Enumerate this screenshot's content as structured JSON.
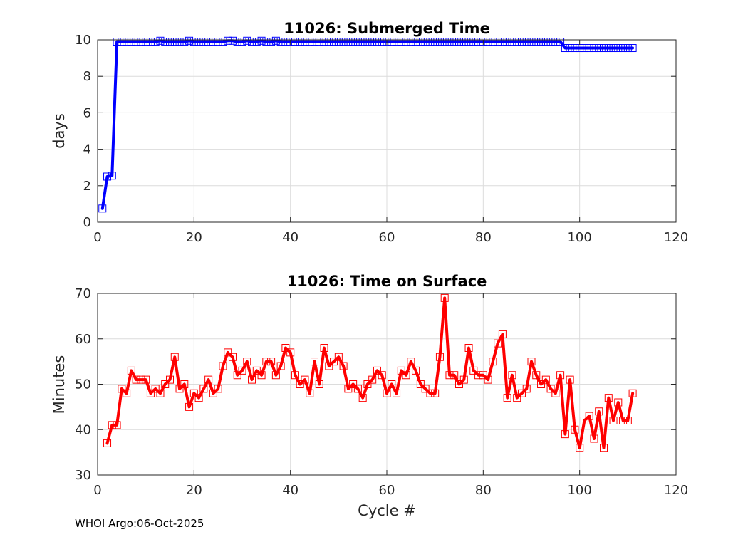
{
  "footer_text": "WHOI Argo:06-Oct-2025",
  "chart_data": [
    {
      "type": "line",
      "title": "11026: Submerged Time",
      "xlabel": "",
      "ylabel": "days",
      "xlim": [
        0,
        120
      ],
      "ylim": [
        0,
        10
      ],
      "xticks": [
        0,
        20,
        40,
        60,
        80,
        100,
        120
      ],
      "yticks": [
        0,
        2,
        4,
        6,
        8,
        10
      ],
      "grid": true,
      "color": "#0000ff",
      "marker": "square",
      "x": [
        1,
        2,
        3,
        4,
        5,
        6,
        7,
        8,
        9,
        10,
        11,
        12,
        13,
        14,
        15,
        16,
        17,
        18,
        19,
        20,
        21,
        22,
        23,
        24,
        25,
        26,
        27,
        28,
        29,
        30,
        31,
        32,
        33,
        34,
        35,
        36,
        37,
        38,
        39,
        40,
        41,
        42,
        43,
        44,
        45,
        46,
        47,
        48,
        49,
        50,
        51,
        52,
        53,
        54,
        55,
        56,
        57,
        58,
        59,
        60,
        61,
        62,
        63,
        64,
        65,
        66,
        67,
        68,
        69,
        70,
        71,
        72,
        73,
        74,
        75,
        76,
        77,
        78,
        79,
        80,
        81,
        82,
        83,
        84,
        85,
        86,
        87,
        88,
        89,
        90,
        91,
        92,
        93,
        94,
        95,
        96,
        97,
        98,
        99,
        100,
        101,
        102,
        103,
        104,
        105,
        106,
        107,
        108,
        109,
        110,
        111
      ],
      "values": [
        0.75,
        2.5,
        2.55,
        9.9,
        9.9,
        9.9,
        9.9,
        9.9,
        9.9,
        9.9,
        9.9,
        9.9,
        9.95,
        9.9,
        9.9,
        9.9,
        9.9,
        9.9,
        9.95,
        9.9,
        9.9,
        9.9,
        9.9,
        9.9,
        9.9,
        9.9,
        9.95,
        9.95,
        9.9,
        9.9,
        9.95,
        9.9,
        9.9,
        9.95,
        9.9,
        9.9,
        9.95,
        9.9,
        9.9,
        9.9,
        9.9,
        9.9,
        9.9,
        9.9,
        9.9,
        9.9,
        9.9,
        9.9,
        9.9,
        9.9,
        9.9,
        9.9,
        9.9,
        9.9,
        9.9,
        9.9,
        9.9,
        9.9,
        9.9,
        9.9,
        9.9,
        9.9,
        9.9,
        9.9,
        9.9,
        9.9,
        9.9,
        9.9,
        9.9,
        9.9,
        9.9,
        9.9,
        9.9,
        9.9,
        9.9,
        9.9,
        9.9,
        9.9,
        9.9,
        9.9,
        9.9,
        9.9,
        9.9,
        9.9,
        9.9,
        9.9,
        9.9,
        9.9,
        9.9,
        9.9,
        9.9,
        9.9,
        9.9,
        9.9,
        9.9,
        9.9,
        9.55,
        9.55,
        9.55,
        9.55,
        9.55,
        9.55,
        9.55,
        9.55,
        9.55,
        9.55,
        9.55,
        9.55,
        9.55,
        9.55,
        9.55
      ]
    },
    {
      "type": "line",
      "title": "11026: Time on Surface",
      "xlabel": "Cycle #",
      "ylabel": "Minutes",
      "xlim": [
        0,
        120
      ],
      "ylim": [
        30,
        70
      ],
      "xticks": [
        0,
        20,
        40,
        60,
        80,
        100,
        120
      ],
      "yticks": [
        30,
        40,
        50,
        60,
        70
      ],
      "grid": true,
      "color": "#ff0000",
      "marker": "square",
      "x": [
        2,
        3,
        4,
        5,
        6,
        7,
        8,
        9,
        10,
        11,
        12,
        13,
        14,
        15,
        16,
        17,
        18,
        19,
        20,
        21,
        22,
        23,
        24,
        25,
        26,
        27,
        28,
        29,
        30,
        31,
        32,
        33,
        34,
        35,
        36,
        37,
        38,
        39,
        40,
        41,
        42,
        43,
        44,
        45,
        46,
        47,
        48,
        49,
        50,
        51,
        52,
        53,
        54,
        55,
        56,
        57,
        58,
        59,
        60,
        61,
        62,
        63,
        64,
        65,
        66,
        67,
        68,
        69,
        70,
        71,
        72,
        73,
        74,
        75,
        76,
        77,
        78,
        79,
        80,
        81,
        82,
        83,
        84,
        85,
        86,
        87,
        88,
        89,
        90,
        91,
        92,
        93,
        94,
        95,
        96,
        97,
        98,
        99,
        100,
        101,
        102,
        103,
        104,
        105,
        106,
        107,
        108,
        109,
        110,
        111
      ],
      "values": [
        37,
        41,
        41,
        49,
        48,
        53,
        51,
        51,
        51,
        48,
        49,
        48,
        50,
        51,
        56,
        49,
        50,
        45,
        48,
        47,
        49,
        51,
        48,
        49,
        54,
        57,
        56,
        52,
        53,
        55,
        51,
        53,
        52,
        55,
        55,
        52,
        54,
        58,
        57,
        52,
        50,
        51,
        48,
        55,
        50,
        58,
        54,
        55,
        56,
        54,
        49,
        50,
        49,
        47,
        50,
        51,
        53,
        52,
        48,
        50,
        48,
        53,
        52,
        55,
        53,
        50,
        49,
        48,
        48,
        56,
        69,
        52,
        52,
        50,
        51,
        58,
        53,
        52,
        52,
        51,
        55,
        59,
        61,
        47,
        52,
        47,
        48,
        49,
        55,
        52,
        50,
        51,
        49,
        48,
        52,
        39,
        51,
        40,
        36,
        42,
        43,
        38,
        44,
        36,
        47,
        42,
        46,
        42,
        42,
        48
      ]
    }
  ]
}
